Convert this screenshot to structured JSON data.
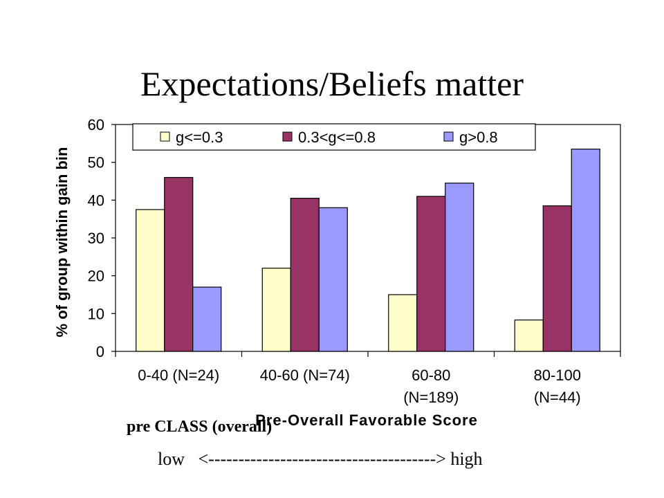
{
  "slide": {
    "title": "Expectations/Beliefs matter",
    "caption_line1": "pre CLASS (overall)",
    "caption_line2": "low   <--------------------------------------> high"
  },
  "chart_data": {
    "type": "bar",
    "categories": [
      [
        "0-40 (N=24)"
      ],
      [
        "40-60 (N=74)"
      ],
      [
        "60-80",
        "(N=189)"
      ],
      [
        "80-100",
        "(N=44)"
      ]
    ],
    "series": [
      {
        "name": "g<=0.3",
        "color": "#ffffcc",
        "values": [
          37.5,
          22,
          15,
          8.3
        ]
      },
      {
        "name": "0.3<g<=0.8",
        "color": "#993366",
        "values": [
          46,
          40.5,
          41,
          38.5
        ]
      },
      {
        "name": "g>0.8",
        "color": "#9999ff",
        "values": [
          17,
          38,
          44.5,
          53.5
        ]
      }
    ],
    "xlabel": "Pre-Overall Favorable Score",
    "ylabel": "% of group within gain bin",
    "ylim": [
      0,
      60
    ],
    "yticks": [
      0,
      10,
      20,
      30,
      40,
      50,
      60
    ],
    "grid": false,
    "legend_position": "top"
  }
}
